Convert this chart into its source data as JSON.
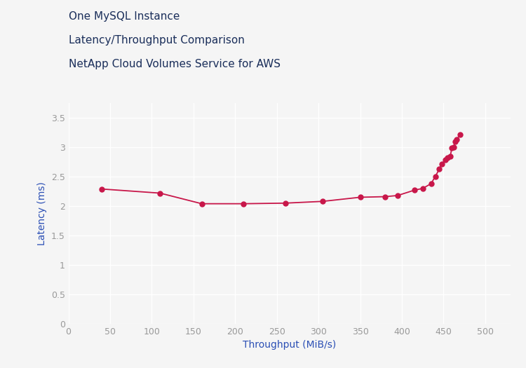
{
  "title_lines": [
    "One MySQL Instance",
    "Latency/Throughput Comparison",
    "NetApp Cloud Volumes Service for AWS"
  ],
  "xlabel": "Throughput (MiB/s)",
  "ylabel": "Latency (ms)",
  "throughput": [
    40,
    110,
    160,
    210,
    260,
    305,
    350,
    380,
    395,
    415,
    425,
    435,
    440,
    445,
    448,
    452,
    455,
    458,
    460,
    462,
    464,
    466,
    470
  ],
  "latency": [
    2.29,
    2.22,
    2.04,
    2.04,
    2.05,
    2.08,
    2.15,
    2.16,
    2.18,
    2.27,
    2.3,
    2.38,
    2.5,
    2.63,
    2.72,
    2.78,
    2.82,
    2.84,
    2.99,
    3.0,
    3.1,
    3.13,
    3.22
  ],
  "line_color": "#c8174a",
  "marker_color": "#c8174a",
  "bg_color": "#f5f5f5",
  "plot_bg_color": "#f5f5f5",
  "grid_color": "#ffffff",
  "title_color": "#1a2e5a",
  "axis_label_color": "#2b4fb5",
  "tick_color": "#999999",
  "xlim": [
    0,
    530
  ],
  "ylim": [
    0,
    3.75
  ],
  "xticks": [
    0,
    50,
    100,
    150,
    200,
    250,
    300,
    350,
    400,
    450,
    500
  ],
  "yticks": [
    0,
    0.5,
    1.0,
    1.5,
    2.0,
    2.5,
    3.0,
    3.5
  ],
  "title_fontsize": 11,
  "axis_label_fontsize": 10,
  "tick_fontsize": 9,
  "marker_size": 5,
  "line_width": 1.3
}
